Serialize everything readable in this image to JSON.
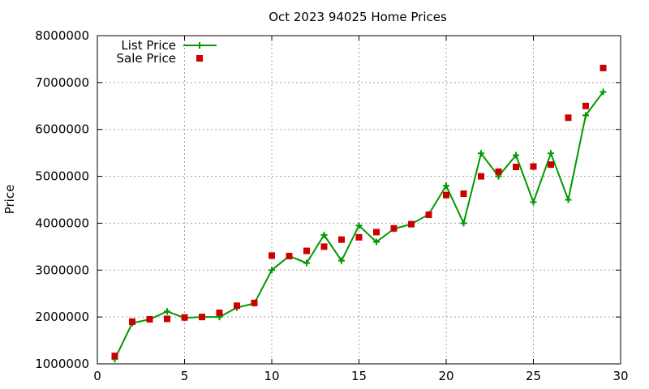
{
  "chart_data": {
    "type": "line",
    "title": "Oct 2023 94025 Home Prices",
    "xlabel": "",
    "ylabel": "Price",
    "xlim": [
      0,
      30
    ],
    "ylim": [
      1000000,
      8000000
    ],
    "x_ticks": [
      0,
      5,
      10,
      15,
      20,
      25,
      30
    ],
    "y_ticks": [
      1000000,
      2000000,
      3000000,
      4000000,
      5000000,
      6000000,
      7000000,
      8000000
    ],
    "grid": true,
    "legend_position": "top-left",
    "series": [
      {
        "name": "List Price",
        "style": "line-points",
        "color": "#009900",
        "marker": "plus",
        "x": [
          1,
          2,
          3,
          4,
          5,
          6,
          7,
          8,
          9,
          10,
          11,
          12,
          13,
          14,
          15,
          16,
          17,
          18,
          19,
          20,
          21,
          22,
          23,
          24,
          25,
          26,
          27,
          28,
          29
        ],
        "values": [
          1100000,
          1870000,
          1950000,
          2120000,
          1980000,
          2000000,
          2000000,
          2200000,
          2290000,
          3000000,
          3300000,
          3150000,
          3750000,
          3200000,
          3950000,
          3600000,
          3880000,
          3980000,
          4190000,
          4800000,
          4000000,
          5490000,
          5000000,
          5450000,
          4450000,
          5490000,
          4500000,
          6300000,
          6800000
        ]
      },
      {
        "name": "Sale Price",
        "style": "points",
        "color": "#cc0000",
        "marker": "square",
        "x": [
          1,
          2,
          3,
          4,
          5,
          6,
          7,
          8,
          9,
          10,
          11,
          12,
          13,
          14,
          15,
          16,
          17,
          18,
          19,
          20,
          21,
          22,
          23,
          24,
          25,
          26,
          27,
          28,
          29
        ],
        "values": [
          1170000,
          1900000,
          1950000,
          1960000,
          1990000,
          2000000,
          2090000,
          2240000,
          2300000,
          3310000,
          3300000,
          3410000,
          3500000,
          3650000,
          3700000,
          3810000,
          3890000,
          3980000,
          4180000,
          4600000,
          4630000,
          5000000,
          5100000,
          5200000,
          5210000,
          5250000,
          6250000,
          6500000,
          7310000
        ]
      }
    ]
  }
}
